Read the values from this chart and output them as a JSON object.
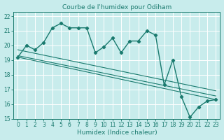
{
  "title": "Courbe de l'humidex pour Odiham",
  "xlabel": "Humidex (Indice chaleur)",
  "background_color": "#c8ecec",
  "line_color": "#1a7a6e",
  "grid_color": "#ffffff",
  "xlim": [
    -0.5,
    23.5
  ],
  "ylim": [
    15,
    22.3
  ],
  "xticks": [
    0,
    1,
    2,
    3,
    4,
    5,
    6,
    7,
    8,
    9,
    10,
    11,
    12,
    13,
    14,
    15,
    16,
    17,
    18,
    19,
    20,
    21,
    22,
    23
  ],
  "yticks": [
    15,
    16,
    17,
    18,
    19,
    20,
    21,
    22
  ],
  "humidex_x": [
    0,
    1,
    2,
    3,
    4,
    5,
    6,
    7,
    8,
    9,
    10,
    11,
    12,
    13,
    14,
    15,
    16,
    17,
    18,
    19,
    20,
    21,
    22,
    23
  ],
  "humidex_y": [
    19.2,
    20.0,
    19.7,
    20.2,
    21.2,
    21.5,
    21.2,
    21.2,
    21.2,
    19.5,
    19.9,
    20.5,
    19.5,
    20.3,
    20.3,
    21.0,
    20.7,
    17.3,
    19.0,
    16.5,
    15.1,
    15.8,
    16.2,
    16.3
  ],
  "line1_x": [
    0,
    23
  ],
  "line1_y": [
    19.2,
    16.3
  ],
  "line2_x": [
    0,
    23
  ],
  "line2_y": [
    19.3,
    16.55
  ],
  "line3_x": [
    0,
    23
  ],
  "line3_y": [
    19.7,
    16.9
  ]
}
